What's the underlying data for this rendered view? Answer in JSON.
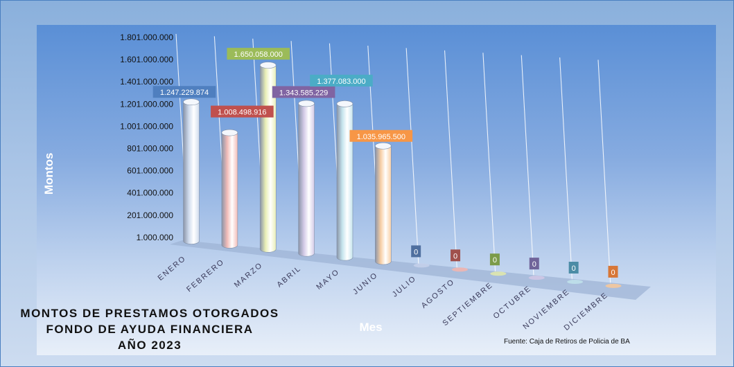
{
  "chart_data": {
    "type": "bar",
    "title_lines": [
      "MONTOS  DE  PRESTAMOS  OTORGADOS",
      "FONDO DE AYUDA  FINANCIERA",
      "AÑO   2023"
    ],
    "xlabel": "Mes",
    "ylabel": "Montos",
    "categories": [
      "ENERO",
      "FEBRERO",
      "MARZO",
      "ABRIL",
      "MAYO",
      "JUNIO",
      "JULIO",
      "AGOSTO",
      "SEPTIEMBRE",
      "OCTUBRE",
      "NOVIEMBRE",
      "DICIEMBRE"
    ],
    "values": [
      1247229874,
      1008498916,
      1650058000,
      1343585229,
      1377083000,
      1035965500,
      0,
      0,
      0,
      0,
      0,
      0
    ],
    "data_labels": [
      "1.247.229.874",
      "1.008.498.916",
      "1.650.058.000",
      "1.343.585.229",
      "1.377.083.000",
      "1.035.965.500",
      "0",
      "0",
      "0",
      "0",
      "0",
      "0"
    ],
    "yticks": [
      "1.801.000.000",
      "1.601.000.000",
      "1.401.000.000",
      "1.201.000.000",
      "1.001.000.000",
      "801.000.000",
      "601.000.000",
      "401.000.000",
      "201.000.000",
      "1.000.000"
    ],
    "ylim": [
      1000000,
      1801000000
    ],
    "colors": [
      "#d0dcee",
      "#f2bcb8",
      "#e9efb6",
      "#d4cbe8",
      "#c6e5ee",
      "#f8cfa6",
      "#c4cfea",
      "#f0b5b0",
      "#dfe7ad",
      "#cfc7e6",
      "#bfe0ea",
      "#f5c89c"
    ],
    "label_colors": [
      "#4f7fbf",
      "#c0504d",
      "#9bbb59",
      "#8064a2",
      "#4bacc6",
      "#f79646",
      "#4f6f9f",
      "#a0504d",
      "#7b9b49",
      "#70649a",
      "#4b8ca6",
      "#d77636"
    ],
    "source": "Fuente: Caja de Retiros de Policia de BA"
  }
}
